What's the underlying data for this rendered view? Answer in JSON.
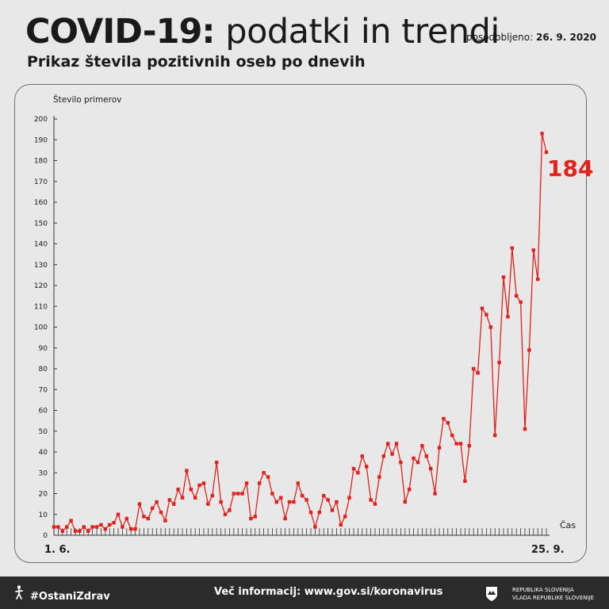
{
  "header": {
    "title_bold": "COVID-19:",
    "title_light": "podatki in trendi",
    "updated_label": "posodobljeno:",
    "updated_date": "26. 9. 2020",
    "subtitle": "Prikaz števila pozitivnih oseb po dnevih"
  },
  "chart_data": {
    "type": "line",
    "ylabel": "Število primerov",
    "xlabel": "Čas",
    "ylim": [
      0,
      200
    ],
    "yticks": [
      0,
      10,
      20,
      30,
      40,
      50,
      60,
      70,
      80,
      90,
      100,
      110,
      120,
      130,
      140,
      150,
      160,
      170,
      180,
      190,
      200
    ],
    "x_start_label": "1. 6.",
    "x_end_label": "25. 9.",
    "last_value_label": "184",
    "line_color": "#e3211c",
    "grid": false,
    "series": [
      {
        "values": [
          4,
          4,
          2,
          4,
          7,
          2,
          2,
          4,
          2,
          4,
          4,
          5,
          3,
          5,
          6,
          10,
          4,
          8,
          3,
          3,
          15,
          9,
          8,
          13,
          16,
          11,
          7,
          17,
          15,
          22,
          18,
          31,
          22,
          18,
          24,
          25,
          15,
          19,
          35,
          16,
          10,
          12,
          20,
          20,
          20,
          25,
          8,
          9,
          25,
          30,
          28,
          20,
          16,
          18,
          8,
          16,
          16,
          25,
          19,
          17,
          11,
          4,
          11,
          19,
          17,
          12,
          16,
          5,
          9,
          18,
          32,
          30,
          38,
          33,
          17,
          15,
          28,
          38,
          44,
          39,
          44,
          35,
          16,
          22,
          37,
          35,
          43,
          38,
          32,
          20,
          42,
          56,
          54,
          48,
          44,
          44,
          26,
          43,
          80,
          78,
          109,
          106,
          100,
          48,
          83,
          124,
          105,
          138,
          115,
          112,
          51,
          89,
          137,
          123,
          193,
          184
        ]
      }
    ]
  },
  "footer": {
    "hashtag": "#OstaniZdrav",
    "info": "Več informacij: www.gov.si/koronavirus",
    "gov_line1": "REPUBLIKA SLOVENIJA",
    "gov_line2": "VLADA REPUBLIKE SLOVENIJE"
  }
}
